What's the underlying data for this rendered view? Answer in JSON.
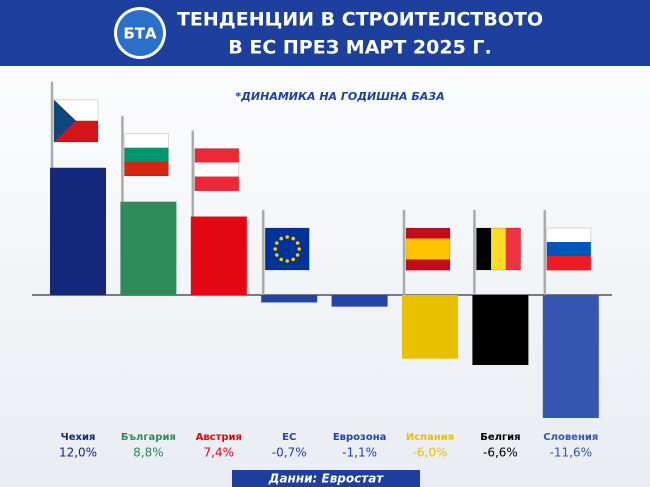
{
  "chart_data": {
    "type": "bar",
    "title": [
      "ТЕНДЕНЦИИ В СТРОИТЕЛСТВОТО",
      "В ЕС ПРЕЗ МАРТ 2025 Г."
    ],
    "logo": "БТА",
    "subtitle": "*ДИНАМИКА НА ГОДИШНА БАЗА",
    "source": "Данни: Евростат",
    "categories": [
      "Чехия",
      "България",
      "Австрия",
      "ЕС",
      "Еврозона",
      "Испания",
      "Белгия",
      "Словения"
    ],
    "values": [
      12.0,
      8.8,
      7.4,
      -0.7,
      -1.1,
      -6.0,
      -6.6,
      -11.6
    ],
    "value_labels": [
      "12,0%",
      "8,8%",
      "7,4%",
      "-0,7%",
      "-1,1%",
      "-6,0%",
      "-6,6%",
      "-11,6%"
    ],
    "colors": [
      "#13287a",
      "#2e8b5a",
      "#e30613",
      "#2443a8",
      "#2443a8",
      "#e8c200",
      "#000000",
      "#3556b0"
    ]
  }
}
